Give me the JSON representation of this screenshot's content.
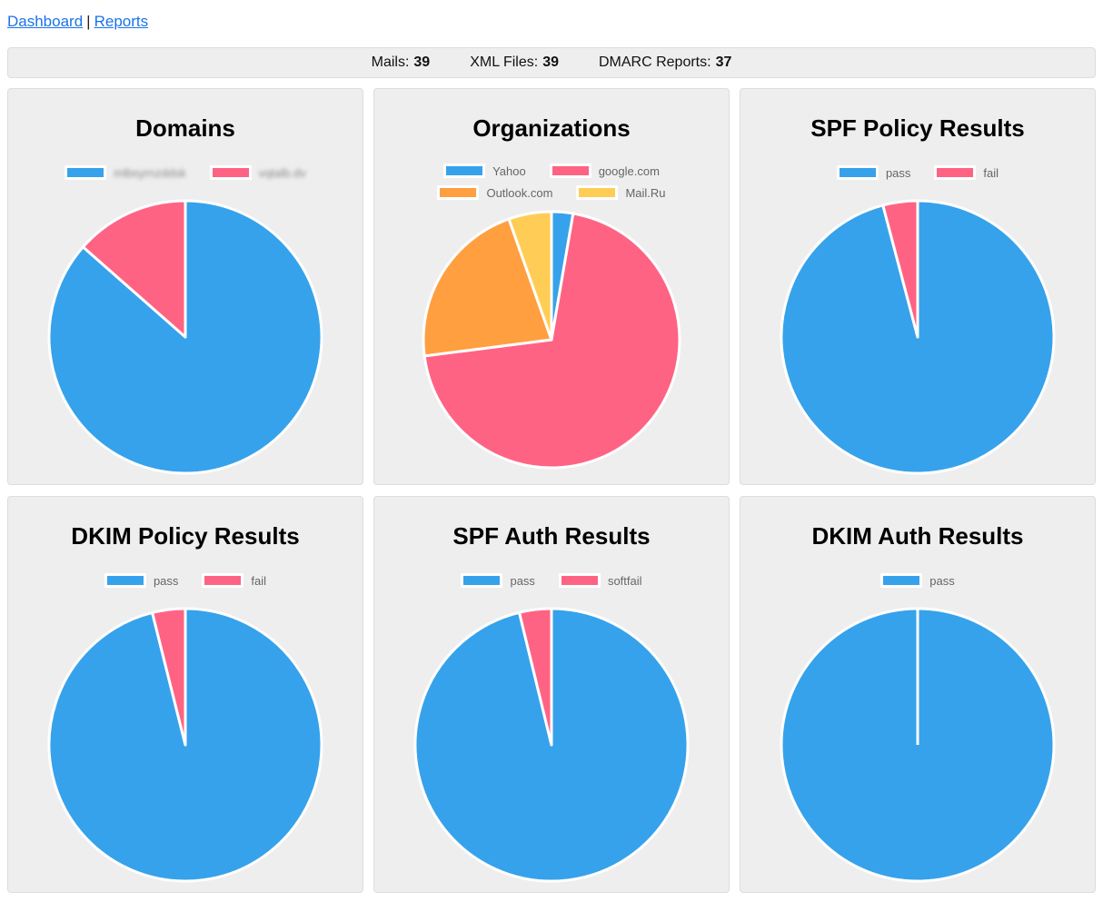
{
  "nav": {
    "links": [
      {
        "label": "Dashboard"
      },
      {
        "label": "Reports"
      }
    ],
    "separator": "|"
  },
  "stats": {
    "items": [
      {
        "label": "Mails:",
        "value": "39"
      },
      {
        "label": "XML Files:",
        "value": "39"
      },
      {
        "label": "DMARC Reports:",
        "value": "37"
      }
    ]
  },
  "colors": {
    "chart_blue": "#36A2EB",
    "chart_pink": "#FF6384",
    "chart_orange": "#FF9F40",
    "chart_yellow": "#FFCD56",
    "pie_border": "#FFFFFF",
    "link": "#1A73E8",
    "legend_text": "#666666",
    "panel_bg": "#EEEEEE",
    "panel_border": "#DDDDDD"
  },
  "chart_data": [
    {
      "type": "pie",
      "title": "Domains",
      "labels": [
        "mlbsyrnzddsk",
        "vqtalb.dv"
      ],
      "labels_redacted": true,
      "labels_note": "legend labels are blurred/illegible in the screenshot",
      "values": [
        32,
        5
      ],
      "values_unit": "reports (estimated from slice angles, ~86.5% / ~13.5%)",
      "colors": [
        "#36A2EB",
        "#FF6384"
      ],
      "legend_position": "top"
    },
    {
      "type": "pie",
      "title": "Organizations",
      "labels": [
        "Yahoo",
        "google.com",
        "Outlook.com",
        "Mail.Ru"
      ],
      "values": [
        1,
        26,
        8,
        2
      ],
      "values_unit": "reports (estimated from slice angles, ~2.7% / ~70.3% / ~21.6% / ~5.4%)",
      "colors": [
        "#36A2EB",
        "#FF6384",
        "#FF9F40",
        "#FFCD56"
      ],
      "legend_position": "top"
    },
    {
      "type": "pie",
      "title": "SPF Policy Results",
      "labels": [
        "pass",
        "fail"
      ],
      "values": [
        95.9,
        4.1
      ],
      "values_unit": "percent (estimated from slice angles)",
      "colors": [
        "#36A2EB",
        "#FF6384"
      ],
      "legend_position": "top"
    },
    {
      "type": "pie",
      "title": "DKIM Policy Results",
      "labels": [
        "pass",
        "fail"
      ],
      "values": [
        96.1,
        3.9
      ],
      "values_unit": "percent (estimated from slice angles)",
      "colors": [
        "#36A2EB",
        "#FF6384"
      ],
      "legend_position": "top"
    },
    {
      "type": "pie",
      "title": "SPF Auth Results",
      "labels": [
        "pass",
        "softfail"
      ],
      "values": [
        96.2,
        3.8
      ],
      "values_unit": "percent (estimated from slice angles)",
      "colors": [
        "#36A2EB",
        "#FF6384"
      ],
      "legend_position": "top"
    },
    {
      "type": "pie",
      "title": "DKIM Auth Results",
      "labels": [
        "pass"
      ],
      "values": [
        100
      ],
      "values_unit": "percent",
      "colors": [
        "#36A2EB"
      ],
      "legend_position": "top"
    }
  ]
}
